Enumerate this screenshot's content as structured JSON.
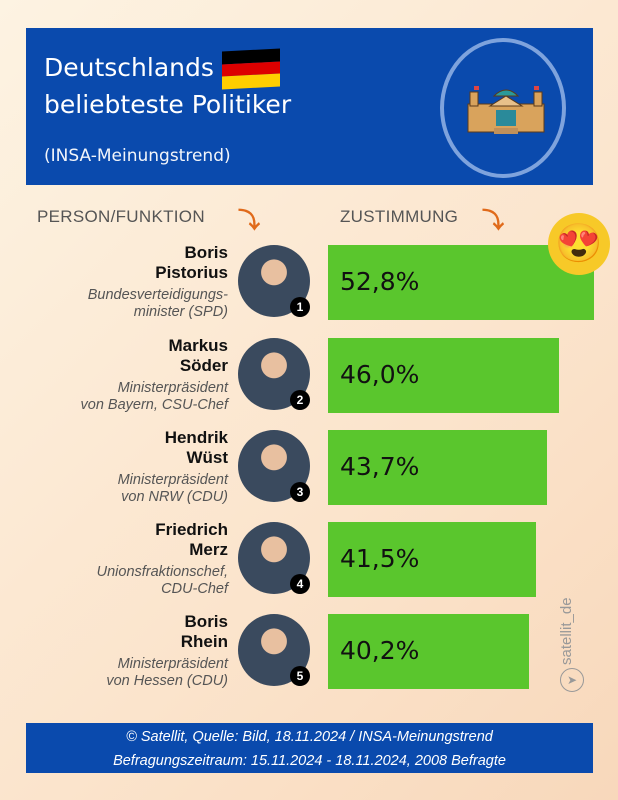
{
  "header": {
    "title_line1": "Deutschlands",
    "title_line2": "beliebteste Politiker",
    "subtitle": "(INSA-Meinungstrend)",
    "flag_colors": [
      "#000000",
      "#dd0000",
      "#ffce00"
    ],
    "icon": "reichstag-building-icon"
  },
  "columns": {
    "person": "PERSON/FUNKTION",
    "approval": "ZUSTIMMUNG"
  },
  "chart_data": {
    "type": "bar",
    "orientation": "horizontal",
    "bar_color": "#5ac62d",
    "categories": [
      "Boris Pistorius",
      "Markus Söder",
      "Hendrik Wüst",
      "Friedrich Merz",
      "Boris Rhein"
    ],
    "values": [
      52.8,
      46.0,
      43.7,
      41.5,
      40.2
    ],
    "value_labels": [
      "52,8%",
      "46,0%",
      "43,7%",
      "41,5%",
      "40,2%"
    ]
  },
  "rows": [
    {
      "rank": "1",
      "first": "Boris",
      "last": "Pistorius",
      "role1": "Bundesverteidigungs-",
      "role2": "minister (SPD)"
    },
    {
      "rank": "2",
      "first": "Markus",
      "last": "Söder",
      "role1": "Ministerpräsident",
      "role2": "von Bayern, CSU-Chef"
    },
    {
      "rank": "3",
      "first": "Hendrik",
      "last": "Wüst",
      "role1": "Ministerpräsident",
      "role2": "von NRW (CDU)"
    },
    {
      "rank": "4",
      "first": "Friedrich",
      "last": "Merz",
      "role1": "Unionsfraktionschef,",
      "role2": "CDU-Chef"
    },
    {
      "rank": "5",
      "first": "Boris",
      "last": "Rhein",
      "role1": "Ministerpräsident",
      "role2": "von Hessen (CDU)"
    }
  ],
  "watermark": "satellit_de",
  "footer": {
    "line1": "© Satellit, Quelle: Bild, 18.11.2024 / INSA-Meinungstrend",
    "line2": "Befragungszeitraum: 15.11.2024 - 18.11.2024, 2008 Befragte"
  }
}
